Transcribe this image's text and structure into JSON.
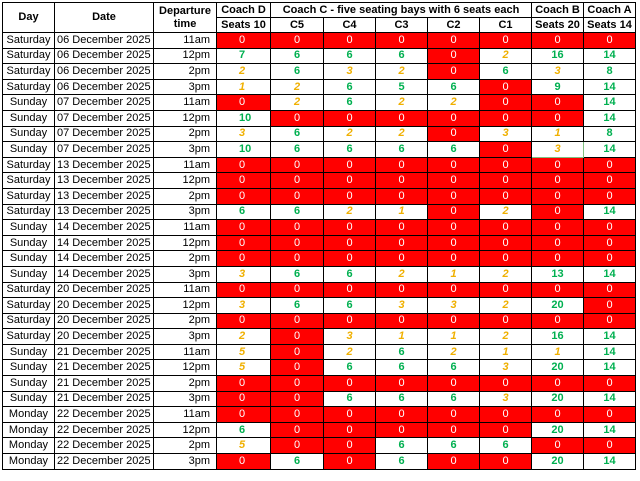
{
  "colors": {
    "full": "#ff0000",
    "available": "#00b050",
    "limited": "#f0b000"
  },
  "headers": {
    "day": "Day",
    "date": "Date",
    "departure_line1": "Departure",
    "departure_line2": "time",
    "coach_d_line1": "Coach D",
    "coach_d_line2": "Seats 10",
    "coach_c_title": "Coach C - five seating bays with 6 seats each",
    "bays": [
      "C5",
      "C4",
      "C3",
      "C2",
      "C1"
    ],
    "coach_b_line1": "Coach B",
    "coach_b_line2": "Seats 20",
    "coach_a_line1": "Coach A",
    "coach_a_line2": "Seats 14"
  },
  "rows": [
    {
      "day": "Saturday",
      "date": "06 December 2025",
      "time": "11am",
      "vals": [
        "0",
        "0",
        "0",
        "0",
        "0",
        "0",
        "0",
        "0"
      ],
      "st": [
        "r",
        "r",
        "r",
        "r",
        "r",
        "r",
        "r",
        "r"
      ]
    },
    {
      "day": "Saturday",
      "date": "06 December 2025",
      "time": "12pm",
      "vals": [
        "7",
        "6",
        "6",
        "6",
        "0",
        "2",
        "16",
        "14"
      ],
      "st": [
        "g",
        "g",
        "g",
        "g",
        "r",
        "o",
        "g",
        "g"
      ]
    },
    {
      "day": "Saturday",
      "date": "06 December 2025",
      "time": "2pm",
      "vals": [
        "2",
        "6",
        "3",
        "2",
        "0",
        "6",
        "3",
        "8"
      ],
      "st": [
        "o",
        "g",
        "o",
        "o",
        "r",
        "g",
        "o",
        "g"
      ]
    },
    {
      "day": "Saturday",
      "date": "06 December 2025",
      "time": "3pm",
      "vals": [
        "1",
        "2",
        "6",
        "5",
        "6",
        "0",
        "9",
        "14"
      ],
      "st": [
        "o",
        "o",
        "g",
        "g",
        "g",
        "r",
        "g",
        "g"
      ]
    },
    {
      "day": "Sunday",
      "date": "07 December 2025",
      "time": "11am",
      "vals": [
        "0",
        "2",
        "6",
        "2",
        "2",
        "0",
        "0",
        "14"
      ],
      "st": [
        "r",
        "o",
        "g",
        "o",
        "o",
        "r",
        "r",
        "g"
      ]
    },
    {
      "day": "Sunday",
      "date": "07 December 2025",
      "time": "12pm",
      "vals": [
        "10",
        "0",
        "0",
        "0",
        "0",
        "0",
        "0",
        "14"
      ],
      "st": [
        "g",
        "r",
        "r",
        "r",
        "r",
        "r",
        "r",
        "g"
      ]
    },
    {
      "day": "Sunday",
      "date": "07 December 2025",
      "time": "2pm",
      "vals": [
        "3",
        "6",
        "2",
        "2",
        "0",
        "3",
        "1",
        "8"
      ],
      "st": [
        "o",
        "g",
        "o",
        "o",
        "r",
        "o",
        "o",
        "g"
      ]
    },
    {
      "day": "Sunday",
      "date": "07 December 2025",
      "time": "3pm",
      "vals": [
        "10",
        "6",
        "6",
        "6",
        "6",
        "0",
        "3",
        "14"
      ],
      "st": [
        "g",
        "g",
        "g",
        "g",
        "g",
        "r",
        "o",
        "g"
      ]
    },
    {
      "day": "Saturday",
      "date": "13 December 2025",
      "time": "11am",
      "vals": [
        "0",
        "0",
        "0",
        "0",
        "0",
        "0",
        "0",
        "0"
      ],
      "st": [
        "r",
        "r",
        "r",
        "r",
        "r",
        "r",
        "r",
        "r"
      ]
    },
    {
      "day": "Saturday",
      "date": "13 December 2025",
      "time": "12pm",
      "vals": [
        "0",
        "0",
        "0",
        "0",
        "0",
        "0",
        "0",
        "0"
      ],
      "st": [
        "r",
        "r",
        "r",
        "r",
        "r",
        "r",
        "r",
        "r"
      ]
    },
    {
      "day": "Saturday",
      "date": "13 December 2025",
      "time": "2pm",
      "vals": [
        "0",
        "0",
        "0",
        "0",
        "0",
        "0",
        "0",
        "0"
      ],
      "st": [
        "r",
        "r",
        "r",
        "r",
        "r",
        "r",
        "r",
        "r"
      ]
    },
    {
      "day": "Saturday",
      "date": "13 December 2025",
      "time": "3pm",
      "vals": [
        "6",
        "6",
        "2",
        "1",
        "0",
        "2",
        "0",
        "14"
      ],
      "st": [
        "g",
        "g",
        "o",
        "o",
        "r",
        "o",
        "r",
        "g"
      ]
    },
    {
      "day": "Sunday",
      "date": "14 December 2025",
      "time": "11am",
      "vals": [
        "0",
        "0",
        "0",
        "0",
        "0",
        "0",
        "0",
        "0"
      ],
      "st": [
        "r",
        "r",
        "r",
        "r",
        "r",
        "r",
        "r",
        "r"
      ]
    },
    {
      "day": "Sunday",
      "date": "14 December 2025",
      "time": "12pm",
      "vals": [
        "0",
        "0",
        "0",
        "0",
        "0",
        "0",
        "0",
        "0"
      ],
      "st": [
        "r",
        "r",
        "r",
        "r",
        "r",
        "r",
        "r",
        "r"
      ]
    },
    {
      "day": "Sunday",
      "date": "14 December 2025",
      "time": "2pm",
      "vals": [
        "0",
        "0",
        "0",
        "0",
        "0",
        "0",
        "0",
        "0"
      ],
      "st": [
        "r",
        "r",
        "r",
        "r",
        "r",
        "r",
        "r",
        "r"
      ]
    },
    {
      "day": "Sunday",
      "date": "14 December 2025",
      "time": "3pm",
      "vals": [
        "3",
        "6",
        "6",
        "2",
        "1",
        "2",
        "13",
        "14"
      ],
      "st": [
        "o",
        "g",
        "g",
        "o",
        "o",
        "o",
        "g",
        "g"
      ]
    },
    {
      "day": "Saturday",
      "date": "20 December 2025",
      "time": "11am",
      "vals": [
        "0",
        "0",
        "0",
        "0",
        "0",
        "0",
        "0",
        "0"
      ],
      "st": [
        "r",
        "r",
        "r",
        "r",
        "r",
        "r",
        "r",
        "r"
      ]
    },
    {
      "day": "Saturday",
      "date": "20 December 2025",
      "time": "12pm",
      "vals": [
        "3",
        "6",
        "6",
        "3",
        "3",
        "2",
        "20",
        "0"
      ],
      "st": [
        "o",
        "g",
        "g",
        "o",
        "o",
        "o",
        "g",
        "r"
      ]
    },
    {
      "day": "Saturday",
      "date": "20 December 2025",
      "time": "2pm",
      "vals": [
        "0",
        "0",
        "0",
        "0",
        "0",
        "0",
        "0",
        "0"
      ],
      "st": [
        "r",
        "r",
        "r",
        "r",
        "r",
        "r",
        "r",
        "r"
      ]
    },
    {
      "day": "Saturday",
      "date": "20 December 2025",
      "time": "3pm",
      "vals": [
        "2",
        "0",
        "3",
        "1",
        "1",
        "2",
        "16",
        "14"
      ],
      "st": [
        "o",
        "r",
        "o",
        "o",
        "o",
        "o",
        "g",
        "g"
      ]
    },
    {
      "day": "Sunday",
      "date": "21 December 2025",
      "time": "11am",
      "vals": [
        "5",
        "0",
        "2",
        "6",
        "2",
        "1",
        "1",
        "14"
      ],
      "st": [
        "o",
        "r",
        "o",
        "g",
        "o",
        "o",
        "o",
        "g"
      ]
    },
    {
      "day": "Sunday",
      "date": "21 December 2025",
      "time": "12pm",
      "vals": [
        "5",
        "0",
        "6",
        "6",
        "6",
        "3",
        "20",
        "14"
      ],
      "st": [
        "o",
        "r",
        "g",
        "g",
        "g",
        "o",
        "g",
        "g"
      ]
    },
    {
      "day": "Sunday",
      "date": "21 December 2025",
      "time": "2pm",
      "vals": [
        "0",
        "0",
        "0",
        "0",
        "0",
        "0",
        "0",
        "0"
      ],
      "st": [
        "r",
        "r",
        "r",
        "r",
        "r",
        "r",
        "r",
        "r"
      ]
    },
    {
      "day": "Sunday",
      "date": "21 December 2025",
      "time": "3pm",
      "vals": [
        "0",
        "0",
        "6",
        "6",
        "6",
        "3",
        "20",
        "14"
      ],
      "st": [
        "r",
        "r",
        "g",
        "g",
        "g",
        "o",
        "g",
        "g"
      ]
    },
    {
      "day": "Monday",
      "date": "22 December 2025",
      "time": "11am",
      "vals": [
        "0",
        "0",
        "0",
        "0",
        "0",
        "0",
        "0",
        "0"
      ],
      "st": [
        "r",
        "r",
        "r",
        "r",
        "r",
        "r",
        "r",
        "r"
      ]
    },
    {
      "day": "Monday",
      "date": "22 December 2025",
      "time": "12pm",
      "vals": [
        "6",
        "0",
        "0",
        "0",
        "0",
        "0",
        "20",
        "14"
      ],
      "st": [
        "g",
        "r",
        "r",
        "r",
        "r",
        "r",
        "g",
        "g"
      ]
    },
    {
      "day": "Monday",
      "date": "22 December 2025",
      "time": "2pm",
      "vals": [
        "5",
        "0",
        "0",
        "6",
        "6",
        "6",
        "0",
        "0"
      ],
      "st": [
        "o",
        "r",
        "r",
        "g",
        "g",
        "g",
        "r",
        "r"
      ]
    },
    {
      "day": "Monday",
      "date": "22 December 2025",
      "time": "3pm",
      "vals": [
        "0",
        "6",
        "0",
        "6",
        "0",
        "0",
        "20",
        "14"
      ],
      "st": [
        "r",
        "g",
        "r",
        "g",
        "r",
        "r",
        "g",
        "g"
      ]
    }
  ]
}
